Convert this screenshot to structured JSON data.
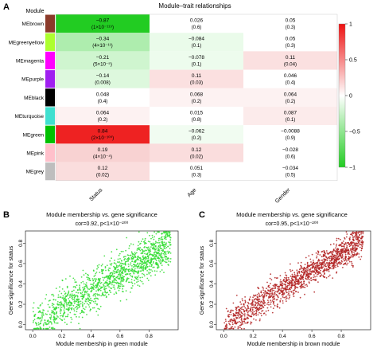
{
  "panels": {
    "a_letter": "A",
    "b_letter": "B",
    "c_letter": "C"
  },
  "chart_data": [
    {
      "type": "heatmap",
      "title": "Module–trait relationships",
      "row_header": "Module",
      "columns": [
        "Status",
        "Age",
        "Gender"
      ],
      "rows": [
        {
          "module": "MEbrown",
          "color": "#8B3A2A",
          "cells": [
            {
              "r": -0.87,
              "r_text": "−0.87",
              "p_text": "(1×10⁻¹¹⁹)",
              "fill": "#22CC22"
            },
            {
              "r": 0.026,
              "r_text": "0.026",
              "p_text": "(0.6)",
              "fill": "#ffffff"
            },
            {
              "r": 0.05,
              "r_text": "0.05",
              "p_text": "(0.3)",
              "fill": "#ffffff"
            }
          ]
        },
        {
          "module": "MEgreenyellow",
          "color": "#ADFF2F",
          "cells": [
            {
              "r": -0.34,
              "r_text": "−0.34",
              "p_text": "(4×10⁻¹¹)",
              "fill": "#AEEDAE"
            },
            {
              "r": -0.084,
              "r_text": "−0.084",
              "p_text": "(0.1)",
              "fill": "#EAFBEA"
            },
            {
              "r": 0.05,
              "r_text": "0.05",
              "p_text": "(0.3)",
              "fill": "#ffffff"
            }
          ]
        },
        {
          "module": "MEmagenta",
          "color": "#FF00FF",
          "cells": [
            {
              "r": -0.21,
              "r_text": "−0.21",
              "p_text": "(5×10⁻⁵)",
              "fill": "#CFF5CF"
            },
            {
              "r": -0.078,
              "r_text": "−0.078",
              "p_text": "(0.1)",
              "fill": "#EDFCED"
            },
            {
              "r": 0.11,
              "r_text": "0.11",
              "p_text": "(0.04)",
              "fill": "#FBE0E0"
            }
          ]
        },
        {
          "module": "MEpurple",
          "color": "#A020F0",
          "cells": [
            {
              "r": -0.14,
              "r_text": "−0.14",
              "p_text": "(0.008)",
              "fill": "#DDF8DD"
            },
            {
              "r": 0.11,
              "r_text": "0.11",
              "p_text": "(0.03)",
              "fill": "#FBE0E0"
            },
            {
              "r": 0.046,
              "r_text": "0.046",
              "p_text": "(0.4)",
              "fill": "#ffffff"
            }
          ]
        },
        {
          "module": "MEblack",
          "color": "#000000",
          "cells": [
            {
              "r": 0.048,
              "r_text": "0.048",
              "p_text": "(0.4)",
              "fill": "#ffffff"
            },
            {
              "r": 0.068,
              "r_text": "0.068",
              "p_text": "(0.2)",
              "fill": "#FDF2F2"
            },
            {
              "r": 0.064,
              "r_text": "0.064",
              "p_text": "(0.2)",
              "fill": "#FDF2F2"
            }
          ]
        },
        {
          "module": "MEturquoise",
          "color": "#40E0D0",
          "cells": [
            {
              "r": 0.064,
              "r_text": "0.064",
              "p_text": "(0.2)",
              "fill": "#FDF2F2"
            },
            {
              "r": 0.015,
              "r_text": "0.015",
              "p_text": "(0.8)",
              "fill": "#ffffff"
            },
            {
              "r": 0.087,
              "r_text": "0.087",
              "p_text": "(0.1)",
              "fill": "#FCEBEB"
            }
          ]
        },
        {
          "module": "MEgreen",
          "color": "#00C000",
          "cells": [
            {
              "r": 0.84,
              "r_text": "0.84",
              "p_text": "(2×10⁻¹⁰⁰)",
              "fill": "#EE2222"
            },
            {
              "r": -0.062,
              "r_text": "−0.062",
              "p_text": "(0.2)",
              "fill": "#F1FCF1"
            },
            {
              "r": -0.0088,
              "r_text": "−0.0088",
              "p_text": "(0.9)",
              "fill": "#ffffff"
            }
          ]
        },
        {
          "module": "MEpink",
          "color": "#FFC0CB",
          "cells": [
            {
              "r": 0.19,
              "r_text": "0.19",
              "p_text": "(4×10⁻⁴)",
              "fill": "#F8D2D2"
            },
            {
              "r": 0.12,
              "r_text": "0.12",
              "p_text": "(0.02)",
              "fill": "#FADDDD"
            },
            {
              "r": -0.028,
              "r_text": "−0.028",
              "p_text": "(0.6)",
              "fill": "#ffffff"
            }
          ]
        },
        {
          "module": "MEgrey",
          "color": "#BEBEBE",
          "cells": [
            {
              "r": 0.12,
              "r_text": "0.12",
              "p_text": "(0.02)",
              "fill": "#FADDDD"
            },
            {
              "r": 0.051,
              "r_text": "0.051",
              "p_text": "(0.3)",
              "fill": "#ffffff"
            },
            {
              "r": -0.034,
              "r_text": "−0.034",
              "p_text": "(0.5)",
              "fill": "#ffffff"
            }
          ]
        }
      ],
      "colorbar": {
        "ticks": [
          "1",
          "0.5",
          "0",
          "−0.5",
          "−1"
        ],
        "high_color": "#EE1111",
        "mid_color": "#ffffff",
        "low_color": "#22CC22"
      }
    },
    {
      "type": "scatter",
      "title": "Module membership vs. gene significance",
      "subtitle": "cor=0.92, p<1×10⁻²⁰⁰",
      "xlabel": "Module membership in green module",
      "ylabel": "Gene significance for status",
      "xlim": [
        -0.05,
        1.0
      ],
      "ylim": [
        -0.05,
        0.92
      ],
      "xticks": [
        "0.0",
        "0.2",
        "0.4",
        "0.6",
        "0.8"
      ],
      "yticks": [
        "0.0",
        "0.2",
        "0.4",
        "0.6",
        "0.8"
      ],
      "point_color": "#33DD33",
      "trend": {
        "n": 1500,
        "x_from": 0.0,
        "x_to": 0.95,
        "y_at_x0": 0.0,
        "y_at_x1": 0.83,
        "noise": 0.1
      }
    },
    {
      "type": "scatter",
      "title": "Module membership vs. gene significance",
      "subtitle": "cor=0.95, p<1×10⁻²⁰⁰",
      "xlabel": "Module membership in brown module",
      "ylabel": "Gene significance for status",
      "xlim": [
        -0.05,
        1.0
      ],
      "ylim": [
        -0.05,
        0.92
      ],
      "xticks": [
        "0.0",
        "0.2",
        "0.4",
        "0.6",
        "0.8"
      ],
      "yticks": [
        "0.0",
        "0.2",
        "0.4",
        "0.6",
        "0.8"
      ],
      "point_color": "#B22222",
      "trend": {
        "n": 1500,
        "x_from": 0.0,
        "x_to": 0.95,
        "y_at_x0": 0.0,
        "y_at_x1": 0.88,
        "noise": 0.07
      }
    }
  ]
}
